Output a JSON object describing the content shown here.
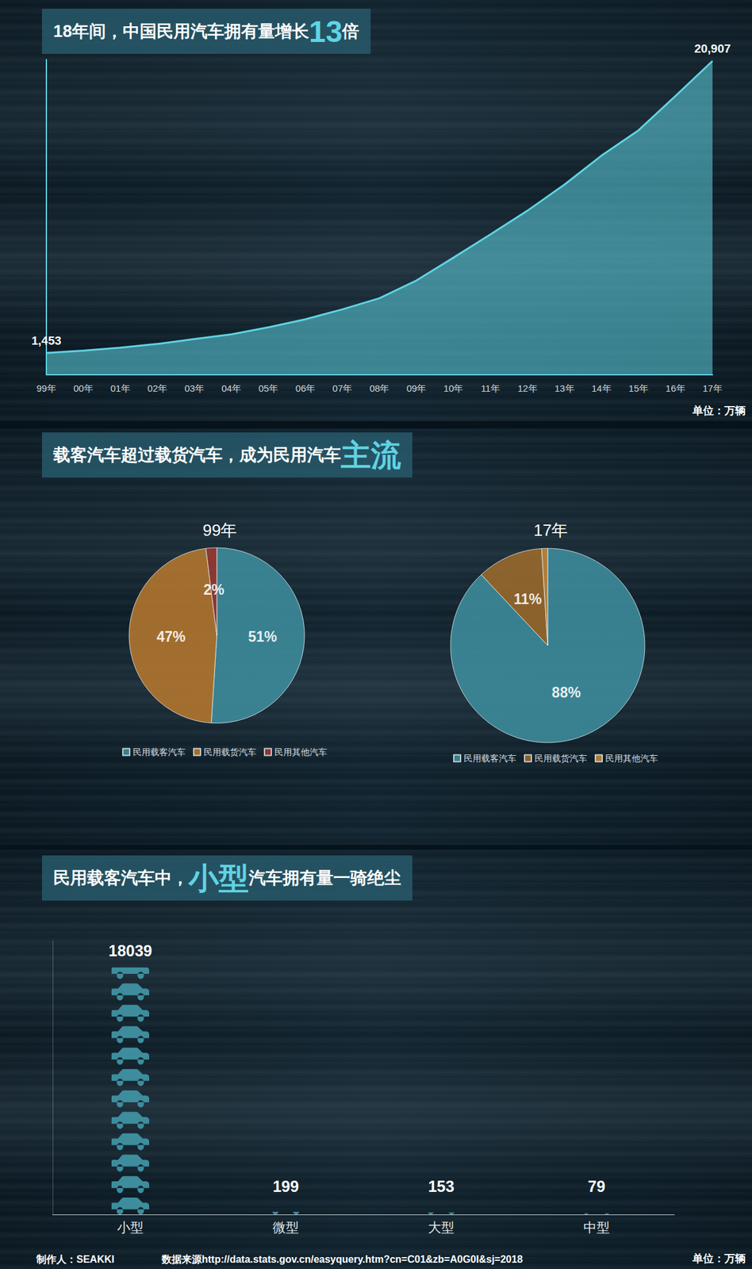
{
  "chart_data": [
    {
      "type": "area",
      "title": [
        "18年间，中国民用汽车拥有量增长",
        "13",
        "倍"
      ],
      "categories": [
        "99年",
        "00年",
        "01年",
        "02年",
        "03年",
        "04年",
        "05年",
        "06年",
        "07年",
        "08年",
        "09年",
        "10年",
        "11年",
        "12年",
        "13年",
        "14年",
        "15年",
        "16年",
        "17年"
      ],
      "values": [
        1453,
        1609,
        1802,
        2053,
        2383,
        2694,
        3160,
        3697,
        4358,
        5100,
        6281,
        7802,
        9356,
        10933,
        12670,
        14598,
        16284,
        18575,
        20907
      ],
      "value_labels": [
        "1,453",
        null,
        null,
        null,
        null,
        null,
        null,
        null,
        null,
        null,
        null,
        null,
        null,
        null,
        null,
        null,
        null,
        null,
        "20,907"
      ],
      "data_labels": true,
      "color": "#5fd3e3",
      "ylim": [
        0,
        21000
      ],
      "grid": false,
      "tick_labels": "x",
      "annotations": [
        "单位：万辆"
      ]
    },
    {
      "type": "pie",
      "title": [
        "载客汽车超过载货汽车，成为民用汽车",
        "主流"
      ],
      "categories": [
        "民用载客汽车",
        "民用载货汽车",
        "民用其他汽车"
      ],
      "series": [
        {
          "name": "99年",
          "values": [
            51,
            47,
            2
          ],
          "value_labels": [
            "51%",
            "47%",
            "2%"
          ],
          "colors": [
            "#3d8d9d",
            "#b5782f",
            "#9a3a32"
          ]
        },
        {
          "name": "17年",
          "values": [
            88,
            11,
            1
          ],
          "value_labels": [
            "88%",
            "11%",
            "1%"
          ],
          "colors": [
            "#3d8d9d",
            "#9c6a2c",
            "#c48a3c"
          ]
        }
      ],
      "data_labels": true,
      "legend": "bottom"
    },
    {
      "type": "bar",
      "marker": "car",
      "title": [
        "民用载客汽车中，",
        "小型",
        "汽车拥有量一骑绝尘"
      ],
      "categories": [
        "小型",
        "微型",
        "大型",
        "中型"
      ],
      "values": [
        18039,
        199,
        153,
        79
      ],
      "data_labels": true,
      "color": "#3d8d9d",
      "ylim": [
        0,
        20000
      ],
      "grid": false,
      "tick_labels": "x",
      "annotations": [
        "单位：万辆"
      ]
    }
  ],
  "footer": {
    "author": "制作人：SEAKKI",
    "source": "数据来源http://data.stats.gov.cn/easyquery.htm?cn=C01&zb=A0G0I&sj=2018"
  }
}
